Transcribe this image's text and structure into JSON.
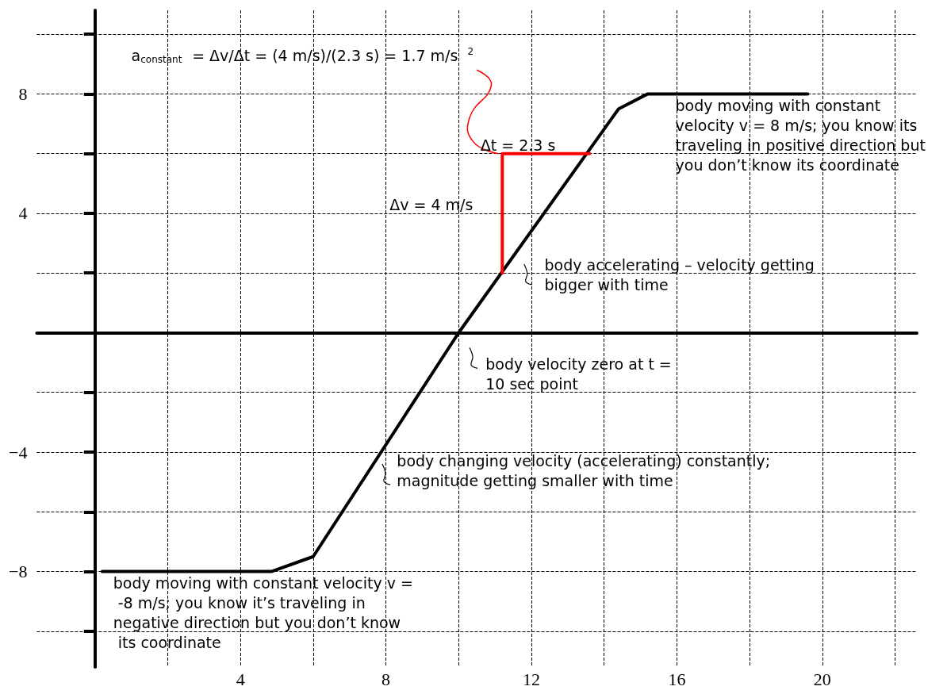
{
  "chart_data": {
    "type": "line",
    "line_style": "solid",
    "grid": true,
    "xlim": [
      -1.6,
      22.6
    ],
    "ylim": [
      -11.2,
      10.8
    ],
    "xticks": [
      {
        "value": 2,
        "label": null
      },
      4,
      {
        "value": 6,
        "label": null
      },
      8,
      {
        "value": 10,
        "label": null
      },
      12,
      {
        "value": 14,
        "label": null
      },
      16,
      {
        "value": 18,
        "label": null
      },
      20,
      {
        "value": 22,
        "label": null
      }
    ],
    "yticks": [
      {
        "value": -10,
        "label": null
      },
      {
        "value": -8,
        "label": "−8"
      },
      {
        "value": -6,
        "label": null
      },
      {
        "value": -4,
        "label": "−4"
      },
      {
        "value": -2,
        "label": null
      },
      {
        "value": 2,
        "label": null
      },
      4,
      {
        "value": 6,
        "label": null
      },
      8,
      {
        "value": 10,
        "label": null
      }
    ],
    "series": [
      {
        "color": "#000000",
        "x": [
          0.2,
          4.85,
          6,
          10,
          14.4,
          15.2,
          19.6
        ],
        "values": [
          -8,
          -8,
          -7.5,
          0,
          7.5,
          8,
          8
        ]
      },
      {
        "color": "#ff0000",
        "x": [
          11.2,
          11.2,
          13.6
        ],
        "values": [
          2,
          6,
          6
        ]
      }
    ],
    "annotations": [
      "a$_{constant}$ = Δv/Δt = (4 m/s)/(2.3 s) = 1.7 m/s$^{2}$",
      "Δt = 2.3 s",
      "Δv = 4 m/s",
      "body moving with constant velocity v = 8 m/s; you know its traveling in positive direction but you don’t know its coordinate",
      "body accelerating – velocity getting bigger with time",
      "body velocity zero at t = 10 sec point",
      "body changing velocity (accelerating) constantly; magnitude getting smaller with time",
      "body moving with constant velocity v = -8 m/s; you know it’s traveling in negative direction but you don’t know its coordinate"
    ]
  }
}
